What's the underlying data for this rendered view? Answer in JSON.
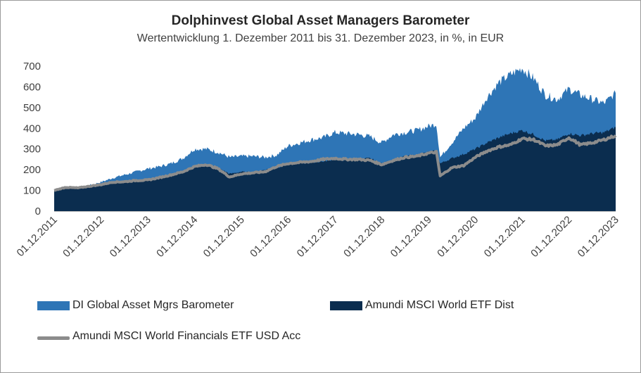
{
  "chart_data": {
    "type": "area",
    "title": "Dolphinvest Global Asset Managers Barometer",
    "subtitle": "Wertentwicklung 1. Dezember 2011 bis 31. Dezember 2023, in %, in EUR",
    "xlabel": "",
    "ylabel": "",
    "ylim": [
      0,
      700
    ],
    "yticks": [
      "0",
      "100",
      "200",
      "300",
      "400",
      "500",
      "600",
      "700"
    ],
    "xticks": [
      "01.12.2011",
      "01.12.2012",
      "01.12.2013",
      "01.12.2014",
      "01.12.2015",
      "01.12.2016",
      "01.12.2017",
      "01.12.2018",
      "01.12.2019",
      "01.12.2020",
      "01.12.2021",
      "01.12.2022",
      "01.12.2023"
    ],
    "grid": false,
    "legend_position": "bottom",
    "x": [
      "2011-12",
      "2012-03",
      "2012-06",
      "2012-09",
      "2012-12",
      "2013-03",
      "2013-06",
      "2013-09",
      "2013-12",
      "2014-03",
      "2014-06",
      "2014-09",
      "2014-12",
      "2015-03",
      "2015-06",
      "2015-09",
      "2015-12",
      "2016-03",
      "2016-06",
      "2016-09",
      "2016-12",
      "2017-03",
      "2017-06",
      "2017-09",
      "2017-12",
      "2018-03",
      "2018-06",
      "2018-09",
      "2018-12",
      "2019-03",
      "2019-06",
      "2019-09",
      "2019-12",
      "2020-02",
      "2020-03",
      "2020-06",
      "2020-09",
      "2020-12",
      "2021-03",
      "2021-06",
      "2021-09",
      "2021-12",
      "2022-03",
      "2022-06",
      "2022-09",
      "2022-12",
      "2023-03",
      "2023-06",
      "2023-09",
      "2023-12"
    ],
    "series": [
      {
        "name": "DI Global Asset Mgrs Barometer",
        "color": "#2e75b6",
        "values": [
          100,
          115,
          110,
          125,
          140,
          160,
          175,
          190,
          205,
          215,
          230,
          255,
          300,
          300,
          285,
          260,
          265,
          265,
          260,
          270,
          315,
          330,
          345,
          355,
          380,
          375,
          370,
          360,
          330,
          370,
          380,
          390,
          410,
          420,
          260,
          330,
          400,
          450,
          550,
          620,
          660,
          690,
          640,
          560,
          540,
          590,
          560,
          540,
          520,
          570
        ]
      },
      {
        "name": "Amundi MSCI World ETF Dist",
        "color": "#0b2d4f",
        "values": [
          100,
          112,
          110,
          118,
          125,
          138,
          140,
          145,
          150,
          160,
          175,
          190,
          215,
          225,
          210,
          180,
          190,
          185,
          200,
          210,
          225,
          230,
          235,
          240,
          250,
          245,
          250,
          255,
          230,
          250,
          265,
          270,
          285,
          290,
          230,
          255,
          275,
          300,
          330,
          355,
          375,
          390,
          370,
          340,
          345,
          375,
          365,
          375,
          380,
          405
        ]
      },
      {
        "name": "Amundi MSCI World Financials ETF USD Acc",
        "color": "#8c8c8c",
        "values": [
          100,
          115,
          112,
          120,
          128,
          140,
          142,
          148,
          150,
          162,
          175,
          190,
          215,
          225,
          205,
          165,
          180,
          185,
          190,
          215,
          230,
          235,
          240,
          250,
          255,
          250,
          250,
          245,
          225,
          245,
          260,
          265,
          280,
          285,
          170,
          210,
          220,
          260,
          290,
          310,
          320,
          350,
          345,
          315,
          320,
          355,
          320,
          330,
          345,
          365
        ]
      }
    ]
  }
}
